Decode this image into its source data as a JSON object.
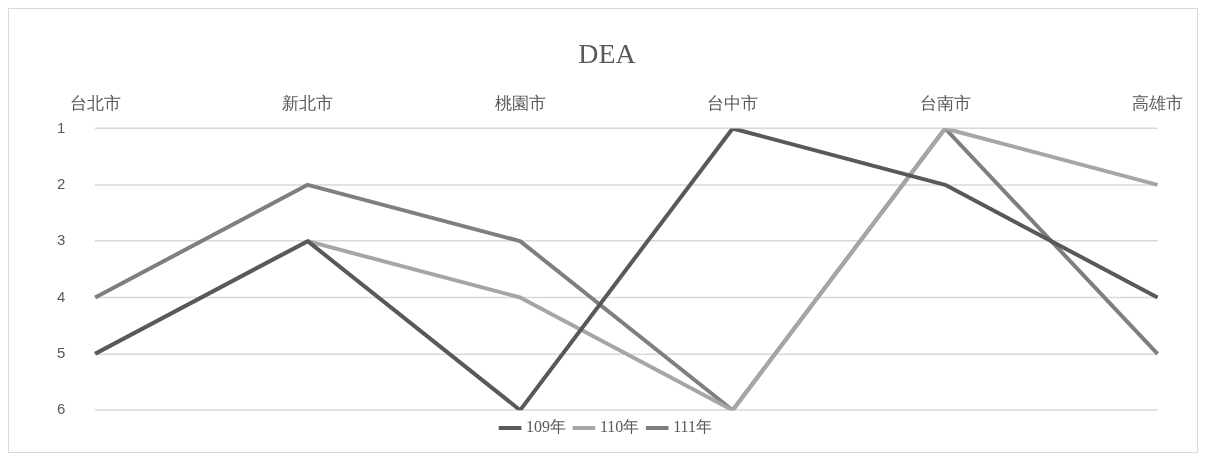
{
  "chart_data": {
    "type": "line",
    "title": "DEA",
    "categories": [
      "台北市",
      "新北市",
      "桃園市",
      "台中市",
      "台南市",
      "高雄市"
    ],
    "series": [
      {
        "name": "109年",
        "color": "#595959",
        "values": [
          5,
          3,
          6,
          1,
          2,
          4
        ]
      },
      {
        "name": "110年",
        "color": "#a6a6a6",
        "values": [
          5,
          3,
          4,
          6,
          1,
          2
        ]
      },
      {
        "name": "111年",
        "color": "#7f7f7f",
        "values": [
          4,
          2,
          3,
          6,
          1,
          5
        ]
      }
    ],
    "ylim": [
      6,
      1
    ],
    "yticks": [
      1,
      2,
      3,
      4,
      5,
      6
    ],
    "grid": "y",
    "legend": "bottom",
    "marker": "none"
  }
}
